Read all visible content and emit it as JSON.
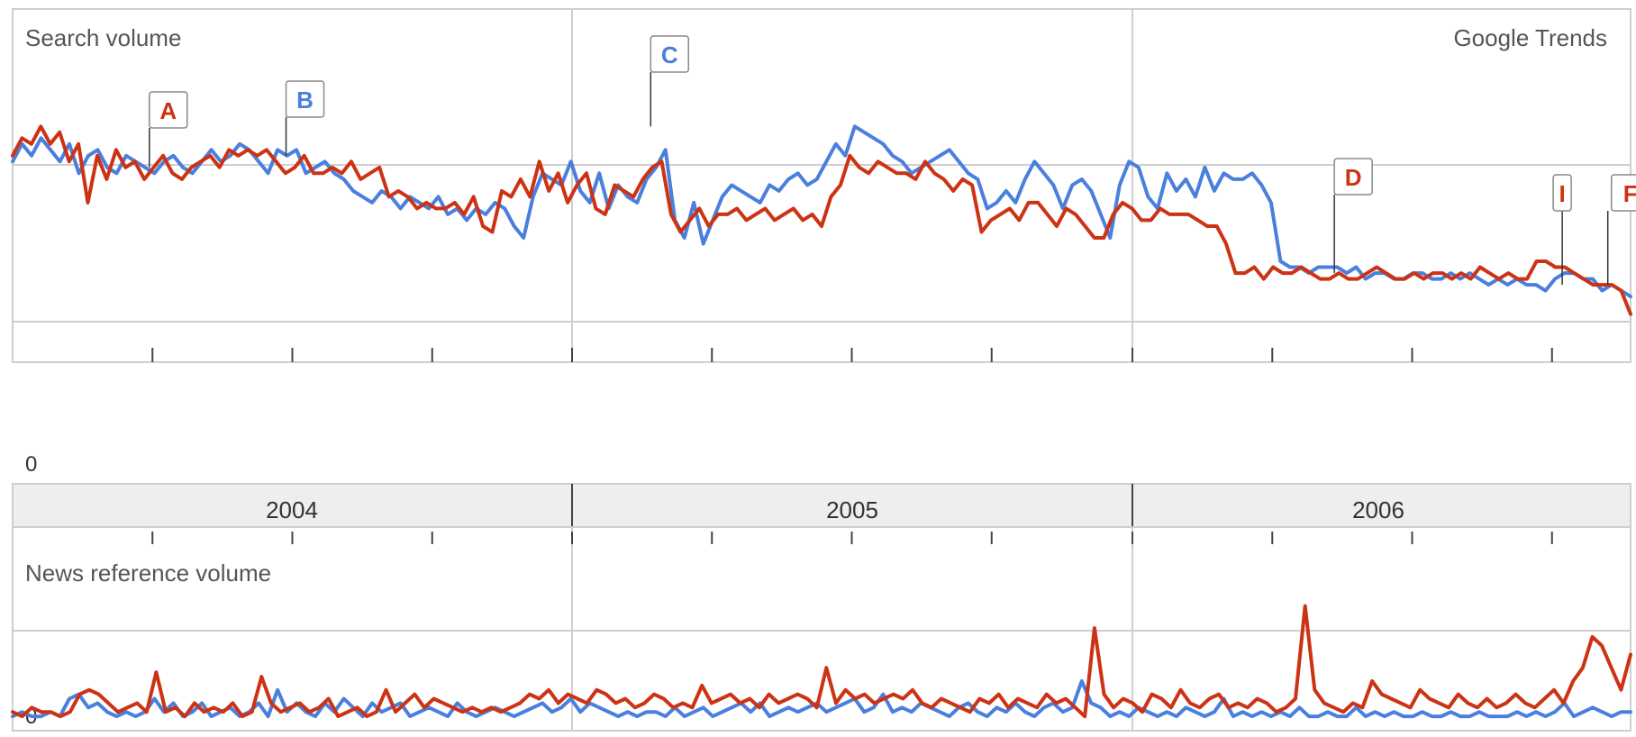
{
  "chart_data": [
    {
      "type": "line",
      "title": "Search volume",
      "brand": "Google Trends",
      "zero_label": "0",
      "x_axis": {
        "year_labels": [
          "2004",
          "2005",
          "2006"
        ],
        "range": [
          "2004-01",
          "2006-12"
        ],
        "tick_interval": "quarter"
      },
      "ylim": [
        0,
        4
      ],
      "grid": true,
      "colors": {
        "series_1": "#4a7fde",
        "series_2": "#cc3314"
      },
      "series": [
        {
          "color": "#4a7fde",
          "values": [
            2.7,
            2.85,
            2.75,
            2.9,
            2.8,
            2.7,
            2.85,
            2.6,
            2.75,
            2.8,
            2.65,
            2.6,
            2.75,
            2.7,
            2.65,
            2.6,
            2.7,
            2.75,
            2.65,
            2.6,
            2.7,
            2.8,
            2.7,
            2.75,
            2.85,
            2.8,
            2.7,
            2.6,
            2.8,
            2.75,
            2.8,
            2.6,
            2.65,
            2.7,
            2.6,
            2.55,
            2.45,
            2.4,
            2.35,
            2.45,
            2.4,
            2.3,
            2.4,
            2.35,
            2.3,
            2.4,
            2.25,
            2.3,
            2.2,
            2.3,
            2.25,
            2.35,
            2.3,
            2.15,
            2.05,
            2.4,
            2.6,
            2.55,
            2.5,
            2.7,
            2.45,
            2.35,
            2.6,
            2.3,
            2.5,
            2.4,
            2.35,
            2.55,
            2.65,
            2.8,
            2.2,
            2.05,
            2.35,
            2.0,
            2.2,
            2.4,
            2.5,
            2.45,
            2.4,
            2.35,
            2.5,
            2.45,
            2.55,
            2.6,
            2.5,
            2.55,
            2.7,
            2.85,
            2.75,
            3.0,
            2.95,
            2.9,
            2.85,
            2.75,
            2.7,
            2.6,
            2.65,
            2.7,
            2.75,
            2.8,
            2.7,
            2.6,
            2.55,
            2.3,
            2.35,
            2.45,
            2.35,
            2.55,
            2.7,
            2.6,
            2.5,
            2.3,
            2.5,
            2.55,
            2.45,
            2.25,
            2.05,
            2.5,
            2.7,
            2.65,
            2.4,
            2.3,
            2.6,
            2.45,
            2.55,
            2.4,
            2.65,
            2.45,
            2.6,
            2.55,
            2.55,
            2.6,
            2.5,
            2.35,
            1.85,
            1.8,
            1.8,
            1.75,
            1.8,
            1.8,
            1.8,
            1.75,
            1.8,
            1.7,
            1.75,
            1.75,
            1.7,
            1.7,
            1.75,
            1.75,
            1.7,
            1.7,
            1.75,
            1.7,
            1.75,
            1.7,
            1.65,
            1.7,
            1.65,
            1.7,
            1.65,
            1.65,
            1.6,
            1.7,
            1.75,
            1.75,
            1.7,
            1.7,
            1.6,
            1.65,
            1.6,
            1.55
          ]
        },
        {
          "color": "#cc3314",
          "values": [
            2.75,
            2.9,
            2.85,
            3.0,
            2.85,
            2.95,
            2.7,
            2.85,
            2.35,
            2.75,
            2.55,
            2.8,
            2.65,
            2.7,
            2.55,
            2.65,
            2.75,
            2.6,
            2.55,
            2.65,
            2.7,
            2.75,
            2.65,
            2.8,
            2.75,
            2.8,
            2.75,
            2.8,
            2.7,
            2.6,
            2.65,
            2.75,
            2.6,
            2.6,
            2.65,
            2.6,
            2.7,
            2.55,
            2.6,
            2.65,
            2.4,
            2.45,
            2.4,
            2.3,
            2.35,
            2.3,
            2.3,
            2.35,
            2.25,
            2.4,
            2.15,
            2.1,
            2.45,
            2.4,
            2.55,
            2.4,
            2.7,
            2.45,
            2.6,
            2.35,
            2.5,
            2.6,
            2.3,
            2.25,
            2.5,
            2.45,
            2.4,
            2.55,
            2.65,
            2.7,
            2.25,
            2.1,
            2.2,
            2.3,
            2.15,
            2.25,
            2.25,
            2.3,
            2.2,
            2.25,
            2.3,
            2.2,
            2.25,
            2.3,
            2.2,
            2.25,
            2.15,
            2.4,
            2.5,
            2.75,
            2.65,
            2.6,
            2.7,
            2.65,
            2.6,
            2.6,
            2.55,
            2.7,
            2.6,
            2.55,
            2.45,
            2.55,
            2.5,
            2.1,
            2.2,
            2.25,
            2.3,
            2.2,
            2.35,
            2.35,
            2.25,
            2.15,
            2.3,
            2.25,
            2.15,
            2.05,
            2.05,
            2.25,
            2.35,
            2.3,
            2.2,
            2.2,
            2.3,
            2.25,
            2.25,
            2.25,
            2.2,
            2.15,
            2.15,
            2.0,
            1.75,
            1.75,
            1.8,
            1.7,
            1.8,
            1.75,
            1.75,
            1.8,
            1.75,
            1.7,
            1.7,
            1.75,
            1.7,
            1.7,
            1.75,
            1.8,
            1.75,
            1.7,
            1.7,
            1.75,
            1.7,
            1.75,
            1.75,
            1.7,
            1.75,
            1.7,
            1.8,
            1.75,
            1.7,
            1.75,
            1.7,
            1.7,
            1.85,
            1.85,
            1.8,
            1.8,
            1.75,
            1.7,
            1.65,
            1.65,
            1.65,
            1.6,
            1.4
          ]
        }
      ],
      "annotations": [
        {
          "label": "A",
          "color": "#cc3314",
          "x": "2004-04",
          "y": 2.65
        },
        {
          "label": "B",
          "color": "#4a7fde",
          "x": "2004-07",
          "y": 2.75
        },
        {
          "label": "C",
          "color": "#4a7fde",
          "x": "2005-03",
          "y": 3.0
        },
        {
          "label": "D",
          "color": "#cc3314",
          "x": "2006-06",
          "y": 1.75
        },
        {
          "label": "I",
          "color": "#cc3314",
          "x": "2006-11",
          "y": 1.65
        },
        {
          "label": "F",
          "color": "#cc3314",
          "x": "2006-12",
          "y": 1.65
        }
      ]
    },
    {
      "type": "line",
      "title": "News reference volume",
      "zero_label": "0",
      "ylim": [
        0,
        2
      ],
      "grid": true,
      "series": [
        {
          "color": "#4a7fde",
          "values": [
            0.05,
            0.1,
            0.05,
            0.05,
            0.1,
            0.05,
            0.25,
            0.3,
            0.15,
            0.2,
            0.1,
            0.05,
            0.1,
            0.05,
            0.1,
            0.25,
            0.1,
            0.2,
            0.05,
            0.1,
            0.2,
            0.05,
            0.1,
            0.15,
            0.05,
            0.1,
            0.2,
            0.05,
            0.35,
            0.1,
            0.2,
            0.1,
            0.05,
            0.2,
            0.1,
            0.25,
            0.15,
            0.05,
            0.2,
            0.1,
            0.15,
            0.2,
            0.05,
            0.1,
            0.15,
            0.1,
            0.05,
            0.2,
            0.1,
            0.05,
            0.1,
            0.15,
            0.1,
            0.05,
            0.1,
            0.15,
            0.2,
            0.1,
            0.15,
            0.25,
            0.1,
            0.2,
            0.15,
            0.1,
            0.05,
            0.1,
            0.05,
            0.1,
            0.1,
            0.05,
            0.15,
            0.05,
            0.1,
            0.15,
            0.05,
            0.1,
            0.15,
            0.2,
            0.1,
            0.2,
            0.05,
            0.1,
            0.15,
            0.1,
            0.15,
            0.2,
            0.1,
            0.15,
            0.2,
            0.25,
            0.1,
            0.15,
            0.3,
            0.1,
            0.15,
            0.1,
            0.2,
            0.15,
            0.1,
            0.05,
            0.15,
            0.2,
            0.1,
            0.05,
            0.15,
            0.1,
            0.2,
            0.1,
            0.05,
            0.15,
            0.2,
            0.1,
            0.15,
            0.45,
            0.2,
            0.15,
            0.05,
            0.1,
            0.05,
            0.15,
            0.1,
            0.05,
            0.1,
            0.05,
            0.15,
            0.1,
            0.05,
            0.1,
            0.25,
            0.05,
            0.1,
            0.05,
            0.1,
            0.05,
            0.1,
            0.05,
            0.15,
            0.05,
            0.05,
            0.1,
            0.05,
            0.05,
            0.15,
            0.05,
            0.1,
            0.05,
            0.1,
            0.05,
            0.05,
            0.1,
            0.05,
            0.05,
            0.1,
            0.05,
            0.05,
            0.1,
            0.05,
            0.05,
            0.05,
            0.1,
            0.05,
            0.1,
            0.05,
            0.1,
            0.2,
            0.05,
            0.1,
            0.15,
            0.1,
            0.05,
            0.1,
            0.1
          ]
        },
        {
          "color": "#cc3314",
          "values": [
            0.1,
            0.05,
            0.15,
            0.1,
            0.1,
            0.05,
            0.1,
            0.3,
            0.35,
            0.3,
            0.2,
            0.1,
            0.15,
            0.2,
            0.1,
            0.55,
            0.1,
            0.15,
            0.05,
            0.2,
            0.1,
            0.15,
            0.1,
            0.2,
            0.05,
            0.1,
            0.5,
            0.2,
            0.1,
            0.15,
            0.2,
            0.1,
            0.15,
            0.25,
            0.05,
            0.1,
            0.15,
            0.05,
            0.1,
            0.35,
            0.1,
            0.2,
            0.3,
            0.15,
            0.25,
            0.2,
            0.15,
            0.1,
            0.15,
            0.1,
            0.15,
            0.1,
            0.15,
            0.2,
            0.3,
            0.25,
            0.35,
            0.2,
            0.3,
            0.25,
            0.2,
            0.35,
            0.3,
            0.2,
            0.25,
            0.15,
            0.2,
            0.3,
            0.25,
            0.15,
            0.2,
            0.15,
            0.4,
            0.2,
            0.25,
            0.3,
            0.2,
            0.25,
            0.15,
            0.3,
            0.2,
            0.25,
            0.3,
            0.25,
            0.15,
            0.6,
            0.2,
            0.35,
            0.25,
            0.3,
            0.2,
            0.25,
            0.3,
            0.25,
            0.35,
            0.2,
            0.15,
            0.25,
            0.2,
            0.15,
            0.1,
            0.25,
            0.2,
            0.3,
            0.15,
            0.25,
            0.2,
            0.15,
            0.3,
            0.2,
            0.25,
            0.15,
            0.05,
            1.05,
            0.3,
            0.15,
            0.25,
            0.2,
            0.1,
            0.3,
            0.25,
            0.15,
            0.35,
            0.2,
            0.15,
            0.25,
            0.3,
            0.15,
            0.2,
            0.15,
            0.25,
            0.2,
            0.1,
            0.15,
            0.25,
            1.3,
            0.35,
            0.2,
            0.15,
            0.1,
            0.2,
            0.15,
            0.45,
            0.3,
            0.25,
            0.2,
            0.15,
            0.35,
            0.25,
            0.2,
            0.15,
            0.3,
            0.2,
            0.15,
            0.25,
            0.15,
            0.2,
            0.3,
            0.2,
            0.15,
            0.25,
            0.35,
            0.2,
            0.45,
            0.6,
            0.95,
            0.85,
            0.6,
            0.35,
            0.75
          ]
        }
      ]
    }
  ]
}
